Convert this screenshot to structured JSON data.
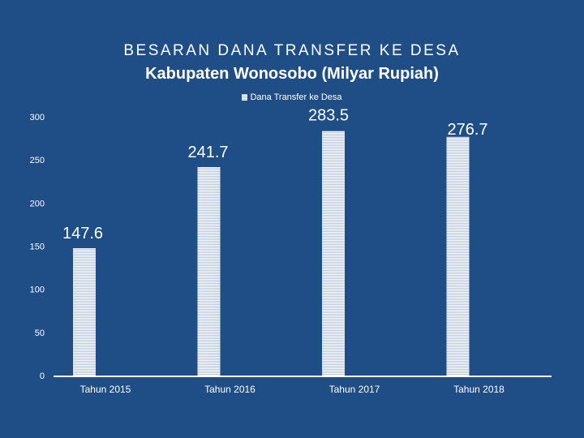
{
  "chart_data": {
    "type": "bar",
    "title": "BESARAN DANA TRANSFER KE DESA",
    "subtitle": "Kabupaten Wonosobo (Milyar Rupiah)",
    "categories": [
      "Tahun 2015",
      "Tahun 2016",
      "Tahun 2017",
      "Tahun 2018"
    ],
    "series": [
      {
        "name": "Dana Transfer ke Desa",
        "values": [
          147.6,
          241.7,
          283.5,
          276.7
        ]
      }
    ],
    "data_labels": [
      "147.6",
      "241.7",
      "283.5",
      "276.7"
    ],
    "yticks": [
      0,
      50,
      100,
      150,
      200,
      250,
      300
    ],
    "ylim": [
      0,
      300
    ],
    "legend_position": "top",
    "grid": false,
    "colors": {
      "background": "#1f4e87",
      "bar": "#ffffff",
      "bar_stripe": "#b9c7dc",
      "text": "#ffffff"
    }
  }
}
